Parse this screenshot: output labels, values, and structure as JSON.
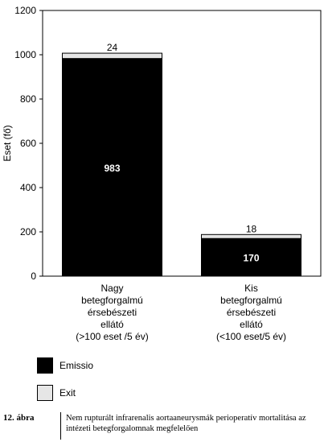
{
  "chart_data": {
    "type": "bar",
    "stacked": true,
    "ylabel": "Eset (fő)",
    "ylim": [
      0,
      1200
    ],
    "yticks": [
      0,
      200,
      400,
      600,
      800,
      1000,
      1200
    ],
    "categories": [
      [
        "Nagy",
        "betegforgalmú",
        "érsebészeti",
        "ellátó",
        "(>100 eset /5 év)"
      ],
      [
        "Kis",
        "betegforgalmú",
        "érsebészeti",
        "ellátó",
        "(<100 eset/5 év)"
      ]
    ],
    "series": [
      {
        "name": "Emissio",
        "values": [
          983,
          170
        ],
        "color": "#000000",
        "label_color": "#ffffff"
      },
      {
        "name": "Exit",
        "values": [
          24,
          18
        ],
        "color": "#e6e6e6",
        "label_color": "#000000"
      }
    ],
    "grid": false,
    "legend_position": "bottom-left"
  },
  "caption": {
    "number": "12. ábra",
    "text": "Nem rupturált infrarenalis aortaaneurysmák perioperatív mortalitása az intézeti betegforgalomnak megfelelően"
  }
}
